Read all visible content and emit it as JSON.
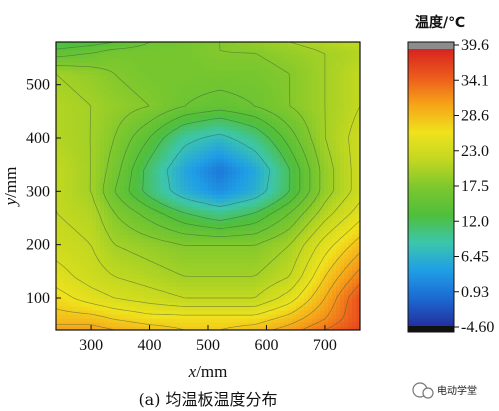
{
  "chart_data": {
    "type": "heatmap",
    "subtype": "filled-contour",
    "caption": "(a) 均温板温度分布",
    "xlabel": "x/mm",
    "xlabel_var": "x",
    "xlabel_unit": "/mm",
    "ylabel": "y/mm",
    "ylabel_var": "y",
    "ylabel_unit": "/mm",
    "xlim": [
      240,
      760
    ],
    "ylim": [
      40,
      580
    ],
    "xticks": [
      300,
      400,
      500,
      600,
      700
    ],
    "yticks": [
      100,
      200,
      300,
      400,
      500
    ],
    "colorbar": {
      "title": "温度/℃",
      "min": -4.6,
      "max": 39.6,
      "ticks": [
        "39.6",
        "34.1",
        "28.6",
        "23.0",
        "17.5",
        "12.0",
        "6.45",
        "0.93",
        "-4.60"
      ],
      "colors": [
        "#2330a0",
        "#1c6ad2",
        "#1f9ee6",
        "#3cc6ad",
        "#4fbf3b",
        "#7cc72e",
        "#c2d820",
        "#f0e21d",
        "#f6a318",
        "#ec5a1c",
        "#d8231f"
      ],
      "over_color": "#8c8c8c",
      "under_color": "#111111"
    },
    "grid_x": [
      240,
      300,
      340,
      400,
      460,
      520,
      580,
      640,
      700,
      760
    ],
    "grid_y": [
      40,
      60,
      100,
      140,
      200,
      260,
      300,
      340,
      400,
      460,
      520,
      560,
      580
    ],
    "z": [
      [
        31,
        31,
        30,
        29,
        28,
        28,
        29,
        31,
        34,
        37
      ],
      [
        29,
        29,
        28,
        27,
        27,
        27,
        27,
        29,
        32,
        36
      ],
      [
        27,
        25,
        24,
        23,
        22,
        22,
        22,
        25,
        30,
        36
      ],
      [
        25,
        23,
        22,
        21,
        20,
        20,
        20,
        22,
        28,
        33
      ],
      [
        23,
        22,
        20,
        19,
        18,
        18,
        18,
        20,
        25,
        29
      ],
      [
        22,
        21,
        18,
        15,
        12,
        10,
        12,
        16,
        21,
        25
      ],
      [
        22,
        20,
        16,
        11,
        6,
        3,
        6,
        12,
        19,
        23
      ],
      [
        22,
        20,
        17,
        11,
        5,
        1,
        5,
        12,
        19,
        23
      ],
      [
        21,
        20,
        18,
        14,
        9,
        7,
        10,
        15,
        20,
        23
      ],
      [
        21,
        20,
        19,
        18,
        16,
        15,
        16,
        18,
        20,
        22
      ],
      [
        20,
        19,
        18,
        17,
        17,
        17,
        17,
        18,
        20,
        22
      ],
      [
        15,
        16,
        17,
        17,
        17,
        18,
        18,
        19,
        20,
        21
      ],
      [
        12,
        13,
        14,
        16,
        17,
        18,
        19,
        20,
        21,
        22
      ]
    ],
    "contour_levels": [
      8,
      12,
      14,
      16,
      18,
      20,
      22,
      24,
      26,
      28,
      30,
      32,
      34
    ]
  },
  "watermark": {
    "label": "电动学堂",
    "icon": "wechat-icon"
  }
}
